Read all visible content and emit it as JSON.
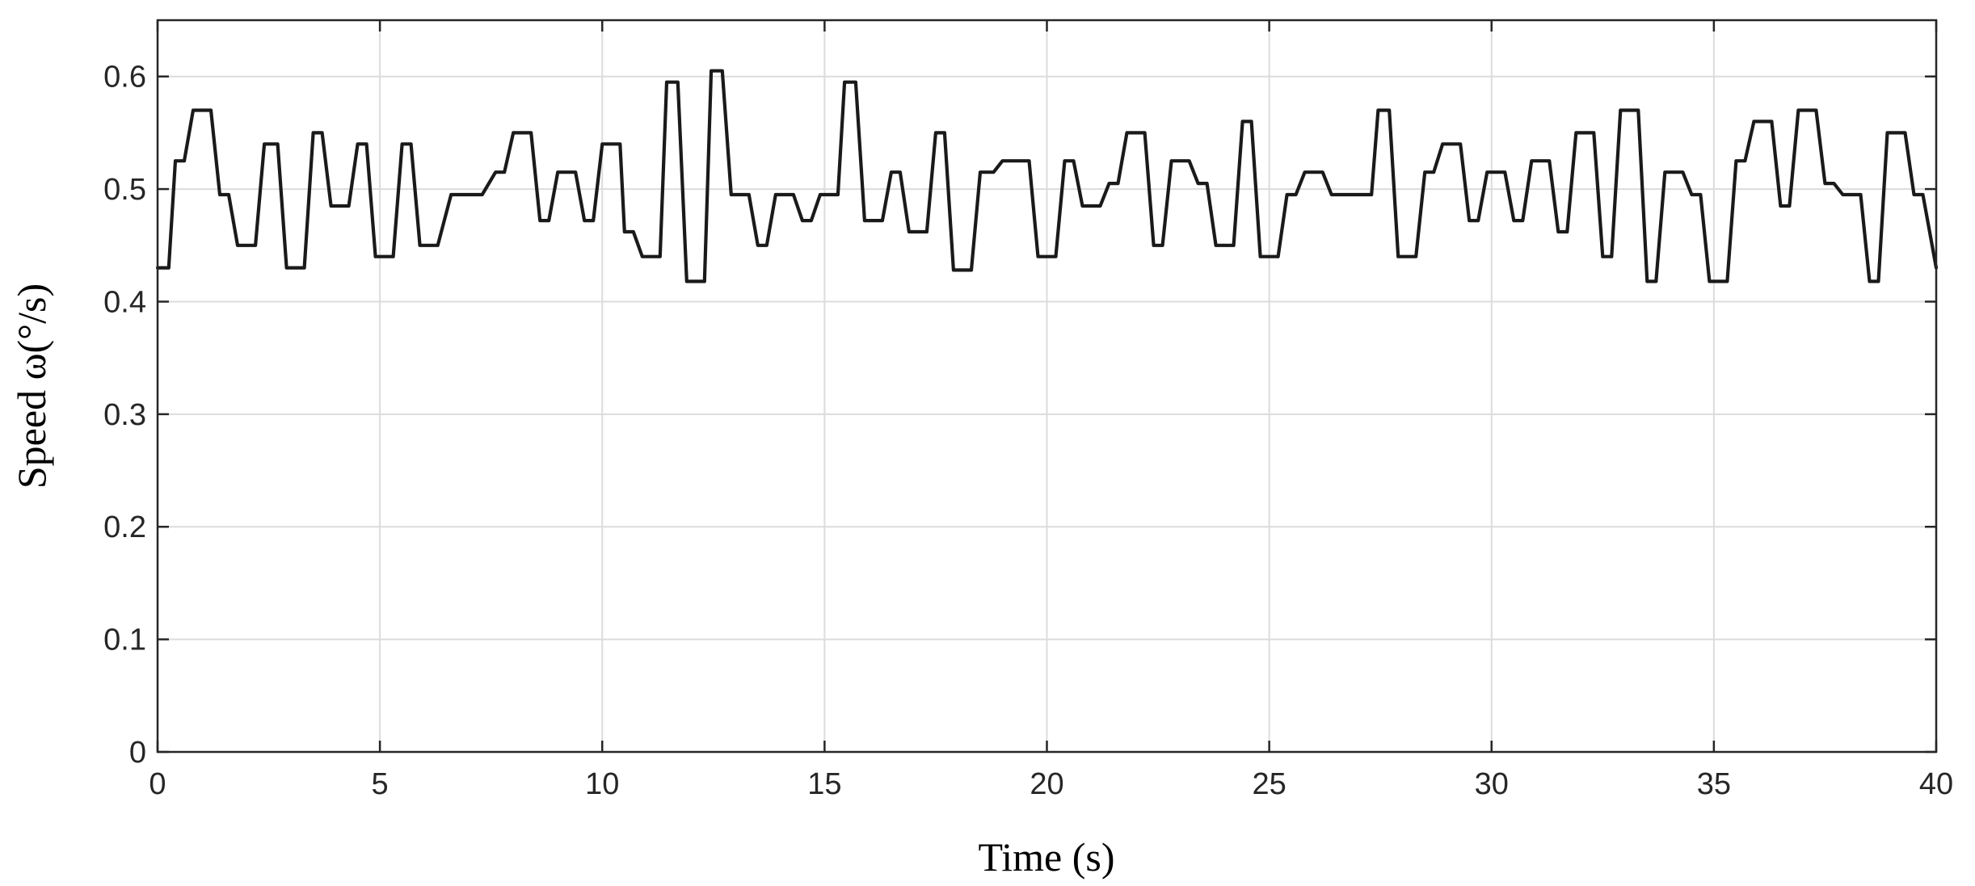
{
  "chart_data": {
    "type": "line",
    "title": "",
    "xlabel": "Time (s)",
    "ylabel": "Speed ω(°/s)",
    "xlim": [
      0,
      40
    ],
    "ylim": [
      0,
      0.65
    ],
    "grid": true,
    "legend": "none",
    "line_color": "#1a1a1a",
    "x_ticks": [
      0,
      5,
      10,
      15,
      20,
      25,
      30,
      35,
      40
    ],
    "x_tick_labels": [
      "0",
      "5",
      "10",
      "15",
      "20",
      "25",
      "30",
      "35",
      "40"
    ],
    "y_ticks": [
      0,
      0.1,
      0.2,
      0.3,
      0.4,
      0.5,
      0.6
    ],
    "y_tick_labels": [
      "0",
      "0.1",
      "0.2",
      "0.3",
      "0.4",
      "0.5",
      "0.6"
    ],
    "series": [
      {
        "x": [
          0,
          0.25,
          0.4,
          0.6,
          0.8,
          1.2,
          1.4,
          1.6,
          1.8,
          2.2,
          2.4,
          2.7,
          2.9,
          3.3,
          3.5,
          3.7,
          3.9,
          4.3,
          4.5,
          4.7,
          4.9,
          5.3,
          5.5,
          5.7,
          5.9,
          6.3,
          6.6,
          7.3,
          7.6,
          7.8,
          8.0,
          8.4,
          8.6,
          8.8,
          9.0,
          9.4,
          9.6,
          9.8,
          10.0,
          10.4,
          10.5,
          10.7,
          10.9,
          11.3,
          11.45,
          11.7,
          11.9,
          12.3,
          12.45,
          12.7,
          12.9,
          13.3,
          13.5,
          13.7,
          13.9,
          14.3,
          14.5,
          14.7,
          14.9,
          15.3,
          15.45,
          15.7,
          15.9,
          16.3,
          16.5,
          16.7,
          16.9,
          17.3,
          17.5,
          17.7,
          17.9,
          18.3,
          18.5,
          18.8,
          19.0,
          19.6,
          19.8,
          20.2,
          20.4,
          20.6,
          20.8,
          21.2,
          21.4,
          21.6,
          21.8,
          22.2,
          22.4,
          22.6,
          22.8,
          23.2,
          23.4,
          23.6,
          23.8,
          24.2,
          24.4,
          24.6,
          24.8,
          25.2,
          25.4,
          25.6,
          25.8,
          26.2,
          26.4,
          27.3,
          27.45,
          27.7,
          27.9,
          28.3,
          28.5,
          28.7,
          28.9,
          29.3,
          29.5,
          29.7,
          29.9,
          30.3,
          30.5,
          30.7,
          30.9,
          31.3,
          31.5,
          31.7,
          31.9,
          32.3,
          32.5,
          32.7,
          32.9,
          33.3,
          33.5,
          33.7,
          33.9,
          34.3,
          34.5,
          34.7,
          34.9,
          35.3,
          35.5,
          35.7,
          35.9,
          36.3,
          36.5,
          36.7,
          36.9,
          37.3,
          37.5,
          37.7,
          37.9,
          38.3,
          38.5,
          38.7,
          38.9,
          39.3,
          39.5,
          39.7,
          40.0
        ],
        "y": [
          0.43,
          0.43,
          0.525,
          0.525,
          0.57,
          0.57,
          0.495,
          0.495,
          0.45,
          0.45,
          0.54,
          0.54,
          0.43,
          0.43,
          0.55,
          0.55,
          0.485,
          0.485,
          0.54,
          0.54,
          0.44,
          0.44,
          0.54,
          0.54,
          0.45,
          0.45,
          0.495,
          0.495,
          0.515,
          0.515,
          0.55,
          0.55,
          0.472,
          0.472,
          0.515,
          0.515,
          0.472,
          0.472,
          0.54,
          0.54,
          0.462,
          0.462,
          0.44,
          0.44,
          0.595,
          0.595,
          0.418,
          0.418,
          0.605,
          0.605,
          0.495,
          0.495,
          0.45,
          0.45,
          0.495,
          0.495,
          0.472,
          0.472,
          0.495,
          0.495,
          0.595,
          0.595,
          0.472,
          0.472,
          0.515,
          0.515,
          0.462,
          0.462,
          0.55,
          0.55,
          0.428,
          0.428,
          0.515,
          0.515,
          0.525,
          0.525,
          0.44,
          0.44,
          0.525,
          0.525,
          0.485,
          0.485,
          0.505,
          0.505,
          0.55,
          0.55,
          0.45,
          0.45,
          0.525,
          0.525,
          0.505,
          0.505,
          0.45,
          0.45,
          0.56,
          0.56,
          0.44,
          0.44,
          0.495,
          0.495,
          0.515,
          0.515,
          0.495,
          0.495,
          0.57,
          0.57,
          0.44,
          0.44,
          0.515,
          0.515,
          0.54,
          0.54,
          0.472,
          0.472,
          0.515,
          0.515,
          0.472,
          0.472,
          0.525,
          0.525,
          0.462,
          0.462,
          0.55,
          0.55,
          0.44,
          0.44,
          0.57,
          0.57,
          0.418,
          0.418,
          0.515,
          0.515,
          0.495,
          0.495,
          0.418,
          0.418,
          0.525,
          0.525,
          0.56,
          0.56,
          0.485,
          0.485,
          0.57,
          0.57,
          0.505,
          0.505,
          0.495,
          0.495,
          0.418,
          0.418,
          0.55,
          0.55,
          0.495,
          0.495,
          0.43
        ]
      }
    ]
  }
}
